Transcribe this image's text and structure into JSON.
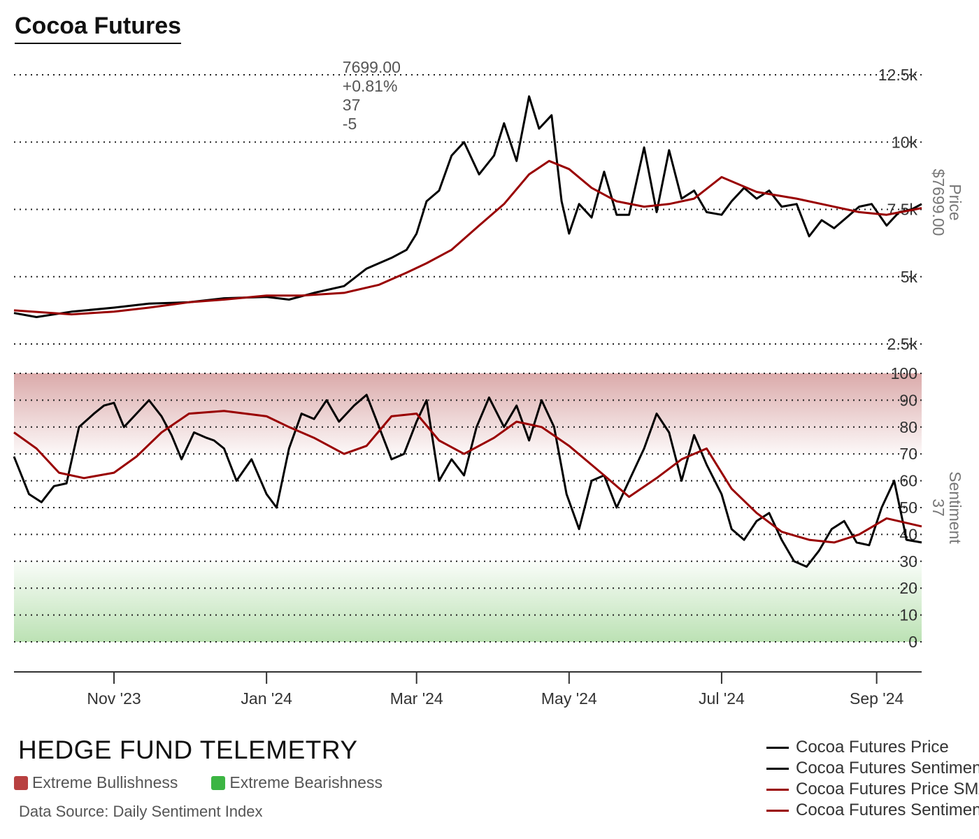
{
  "header": {
    "title": "Cocoa Futures",
    "last_price": "7699.00",
    "change_pct": "+0.81%",
    "sentiment": "37",
    "sentiment_change": "-5"
  },
  "footer": {
    "brand": "HEDGE FUND TELEMETRY",
    "zone_bull_label": "Extreme Bullishness",
    "zone_bear_label": "Extreme Bearishness",
    "source": "Data Source: Daily Sentiment Index"
  },
  "colors": {
    "price_line": "#000000",
    "sentiment_line": "#000000",
    "sma_line": "#990000",
    "bull_zone": "#d9a6a6",
    "bear_zone": "#b8e0b0",
    "swatch_bull": "#b84040",
    "swatch_bear": "#3cb543"
  },
  "chart_data": {
    "type": "line",
    "x_tick_labels": [
      "Nov '23",
      "Jan '24",
      "Mar '24",
      "May '24",
      "Jul '24",
      "Sep '24"
    ],
    "x_ticks": [
      "2023-11-01",
      "2024-01-01",
      "2024-03-01",
      "2024-05-01",
      "2024-07-01",
      "2024-09-01"
    ],
    "x_range": [
      "2023-09-22",
      "2024-09-19"
    ],
    "legend": [
      {
        "label": "Cocoa Futures Price",
        "color": "#000000"
      },
      {
        "label": "Cocoa Futures Sentiment",
        "color": "#000000"
      },
      {
        "label": "Cocoa Futures Price SMA",
        "color": "#990000"
      },
      {
        "label": "Cocoa Futures Sentiment SMA",
        "color": "#990000"
      }
    ],
    "panels": [
      {
        "name": "price",
        "axis_title": "Price",
        "axis_value": "$7699.00",
        "y_range": [
          2500,
          12500
        ],
        "y_ticks": [
          2500,
          5000,
          7500,
          10000,
          12500
        ],
        "y_tick_labels": [
          "2.5k",
          "5k",
          "7.5k",
          "10k",
          "12.5k"
        ],
        "grid": true,
        "series": [
          {
            "name": "Cocoa Futures Price",
            "color": "#000000",
            "x": [
              "2023-09-22",
              "2023-10-01",
              "2023-10-15",
              "2023-11-01",
              "2023-11-15",
              "2023-12-01",
              "2023-12-15",
              "2024-01-01",
              "2024-01-10",
              "2024-01-20",
              "2024-02-01",
              "2024-02-10",
              "2024-02-20",
              "2024-02-26",
              "2024-03-01",
              "2024-03-05",
              "2024-03-10",
              "2024-03-15",
              "2024-03-20",
              "2024-03-26",
              "2024-04-01",
              "2024-04-05",
              "2024-04-10",
              "2024-04-15",
              "2024-04-19",
              "2024-04-24",
              "2024-04-28",
              "2024-05-01",
              "2024-05-05",
              "2024-05-10",
              "2024-05-15",
              "2024-05-20",
              "2024-05-25",
              "2024-05-31",
              "2024-06-05",
              "2024-06-10",
              "2024-06-15",
              "2024-06-20",
              "2024-06-25",
              "2024-07-01",
              "2024-07-05",
              "2024-07-10",
              "2024-07-15",
              "2024-07-20",
              "2024-07-25",
              "2024-07-31",
              "2024-08-05",
              "2024-08-10",
              "2024-08-15",
              "2024-08-20",
              "2024-08-25",
              "2024-08-30",
              "2024-09-05",
              "2024-09-10",
              "2024-09-15",
              "2024-09-19"
            ],
            "values": [
              3650,
              3500,
              3700,
              3850,
              4000,
              4050,
              4200,
              4250,
              4150,
              4400,
              4650,
              5300,
              5700,
              6000,
              6600,
              7800,
              8200,
              9500,
              10000,
              8800,
              9500,
              10700,
              9300,
              11700,
              10500,
              11000,
              7800,
              6600,
              7700,
              7200,
              8900,
              7300,
              7300,
              9800,
              7400,
              9700,
              7900,
              8200,
              7400,
              7300,
              7800,
              8300,
              7900,
              8200,
              7600,
              7700,
              6500,
              7100,
              6800,
              7200,
              7600,
              7700,
              6900,
              7400,
              7500,
              7699
            ]
          },
          {
            "name": "Cocoa Futures Price SMA",
            "color": "#990000",
            "x": [
              "2023-09-22",
              "2023-10-15",
              "2023-11-01",
              "2023-11-15",
              "2023-12-01",
              "2023-12-15",
              "2024-01-01",
              "2024-01-15",
              "2024-02-01",
              "2024-02-15",
              "2024-02-26",
              "2024-03-05",
              "2024-03-15",
              "2024-03-26",
              "2024-04-05",
              "2024-04-15",
              "2024-04-23",
              "2024-05-01",
              "2024-05-10",
              "2024-05-20",
              "2024-05-31",
              "2024-06-10",
              "2024-06-20",
              "2024-07-01",
              "2024-07-15",
              "2024-07-31",
              "2024-08-10",
              "2024-08-25",
              "2024-09-05",
              "2024-09-19"
            ],
            "values": [
              3750,
              3600,
              3700,
              3850,
              4050,
              4150,
              4300,
              4300,
              4400,
              4700,
              5150,
              5500,
              6000,
              6900,
              7700,
              8800,
              9300,
              9000,
              8300,
              7800,
              7600,
              7700,
              7900,
              8700,
              8150,
              7900,
              7700,
              7400,
              7300,
              7550
            ]
          }
        ]
      },
      {
        "name": "sentiment",
        "axis_title": "Sentiment",
        "axis_value": "37",
        "y_range": [
          0,
          100
        ],
        "y_ticks": [
          0,
          10,
          20,
          30,
          40,
          50,
          60,
          70,
          80,
          90,
          100
        ],
        "y_tick_labels": [
          "0",
          "10",
          "20",
          "30",
          "40",
          "50",
          "60",
          "70",
          "80",
          "90",
          "100"
        ],
        "extreme_bullish_band": [
          70,
          100
        ],
        "extreme_bearish_band": [
          0,
          30
        ],
        "grid": true,
        "series": [
          {
            "name": "Cocoa Futures Sentiment",
            "color": "#000000",
            "x": [
              "2023-09-22",
              "2023-09-28",
              "2023-10-03",
              "2023-10-08",
              "2023-10-13",
              "2023-10-18",
              "2023-10-24",
              "2023-10-28",
              "2023-11-01",
              "2023-11-05",
              "2023-11-10",
              "2023-11-15",
              "2023-11-20",
              "2023-11-24",
              "2023-11-28",
              "2023-12-03",
              "2023-12-08",
              "2023-12-11",
              "2023-12-15",
              "2023-12-20",
              "2023-12-26",
              "2024-01-01",
              "2024-01-05",
              "2024-01-10",
              "2024-01-15",
              "2024-01-20",
              "2024-01-25",
              "2024-01-30",
              "2024-02-05",
              "2024-02-10",
              "2024-02-15",
              "2024-02-20",
              "2024-02-25",
              "2024-03-01",
              "2024-03-05",
              "2024-03-10",
              "2024-03-15",
              "2024-03-20",
              "2024-03-25",
              "2024-03-30",
              "2024-04-05",
              "2024-04-10",
              "2024-04-15",
              "2024-04-20",
              "2024-04-25",
              "2024-04-30",
              "2024-05-05",
              "2024-05-10",
              "2024-05-15",
              "2024-05-20",
              "2024-05-25",
              "2024-05-31",
              "2024-06-05",
              "2024-06-10",
              "2024-06-15",
              "2024-06-20",
              "2024-06-25",
              "2024-07-01",
              "2024-07-05",
              "2024-07-10",
              "2024-07-15",
              "2024-07-20",
              "2024-07-25",
              "2024-07-30",
              "2024-08-04",
              "2024-08-09",
              "2024-08-14",
              "2024-08-19",
              "2024-08-24",
              "2024-08-29",
              "2024-09-03",
              "2024-09-08",
              "2024-09-13",
              "2024-09-19"
            ],
            "values": [
              69,
              55,
              52,
              58,
              59,
              80,
              85,
              88,
              89,
              80,
              85,
              90,
              84,
              77,
              68,
              78,
              76,
              75,
              72,
              60,
              68,
              55,
              50,
              72,
              85,
              83,
              90,
              82,
              88,
              92,
              80,
              68,
              70,
              82,
              90,
              60,
              68,
              62,
              80,
              91,
              80,
              88,
              75,
              90,
              80,
              55,
              42,
              60,
              62,
              50,
              60,
              72,
              85,
              78,
              60,
              77,
              66,
              55,
              42,
              38,
              45,
              48,
              38,
              30,
              28,
              34,
              42,
              45,
              37,
              36,
              50,
              60,
              38,
              37
            ]
          },
          {
            "name": "Cocoa Futures Sentiment SMA",
            "color": "#990000",
            "x": [
              "2023-09-22",
              "2023-10-01",
              "2023-10-10",
              "2023-10-20",
              "2023-11-01",
              "2023-11-10",
              "2023-11-20",
              "2023-12-01",
              "2023-12-15",
              "2024-01-01",
              "2024-01-10",
              "2024-01-20",
              "2024-02-01",
              "2024-02-10",
              "2024-02-20",
              "2024-03-01",
              "2024-03-10",
              "2024-03-20",
              "2024-04-01",
              "2024-04-10",
              "2024-04-20",
              "2024-05-01",
              "2024-05-15",
              "2024-05-25",
              "2024-06-05",
              "2024-06-15",
              "2024-06-25",
              "2024-07-05",
              "2024-07-15",
              "2024-07-25",
              "2024-08-05",
              "2024-08-15",
              "2024-08-25",
              "2024-09-05",
              "2024-09-19"
            ],
            "values": [
              78,
              72,
              63,
              61,
              63,
              69,
              78,
              85,
              86,
              84,
              80,
              76,
              70,
              73,
              84,
              85,
              75,
              70,
              76,
              82,
              80,
              73,
              62,
              54,
              61,
              68,
              72,
              57,
              48,
              41,
              38,
              37,
              40,
              46,
              43
            ]
          }
        ]
      }
    ]
  }
}
